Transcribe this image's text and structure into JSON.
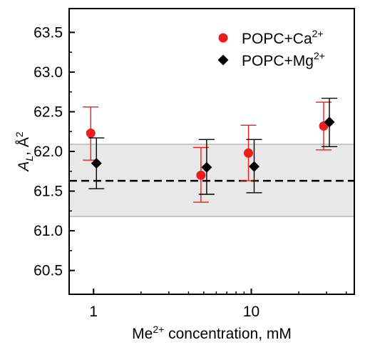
{
  "chart_data": {
    "type": "scatter",
    "x_scale": "log",
    "xlim": [
      0.7,
      45
    ],
    "ylim": [
      60.2,
      63.8
    ],
    "x_major_ticks": [
      1,
      10
    ],
    "x_tick_labels": [
      "1",
      "10"
    ],
    "y_ticks": [
      60.5,
      61.0,
      61.5,
      62.0,
      62.5,
      63.0,
      63.5
    ],
    "y_tick_labels": [
      "60.5",
      "61.0",
      "61.5",
      "62.0",
      "62.5",
      "63.0",
      "63.5"
    ],
    "xlabel": {
      "prefix": "Me",
      "sup": "2+",
      "suffix": " concentration, mM"
    },
    "ylabel": {
      "main": "A",
      "sub": "L",
      "rest": ", Å",
      "sup": "2"
    },
    "legend_position": "top-right",
    "reference": {
      "value": 61.63,
      "band": [
        61.18,
        62.09
      ],
      "line_style": "dashed",
      "band_color": "#e8e8e8"
    },
    "series": [
      {
        "name": {
          "prefix": "POPC+Ca",
          "sup": "2+"
        },
        "marker": "circle",
        "color": "#ee1c1c",
        "points": [
          {
            "x": 1,
            "y": 62.23,
            "err_low": 61.89,
            "err_high": 62.56
          },
          {
            "x": 5,
            "y": 61.7,
            "err_low": 61.36,
            "err_high": 62.05
          },
          {
            "x": 10,
            "y": 61.98,
            "err_low": 61.63,
            "err_high": 62.33
          },
          {
            "x": 30,
            "y": 62.32,
            "err_low": 62.02,
            "err_high": 62.62
          }
        ]
      },
      {
        "name": {
          "prefix": "POPC+Mg",
          "sup": "2+"
        },
        "marker": "diamond",
        "color": "#000000",
        "points": [
          {
            "x": 1,
            "y": 61.85,
            "err_low": 61.53,
            "err_high": 62.17
          },
          {
            "x": 5,
            "y": 61.8,
            "err_low": 61.46,
            "err_high": 62.15
          },
          {
            "x": 10,
            "y": 61.81,
            "err_low": 61.48,
            "err_high": 62.15
          },
          {
            "x": 30,
            "y": 62.37,
            "err_low": 62.06,
            "err_high": 62.67
          }
        ]
      }
    ]
  }
}
